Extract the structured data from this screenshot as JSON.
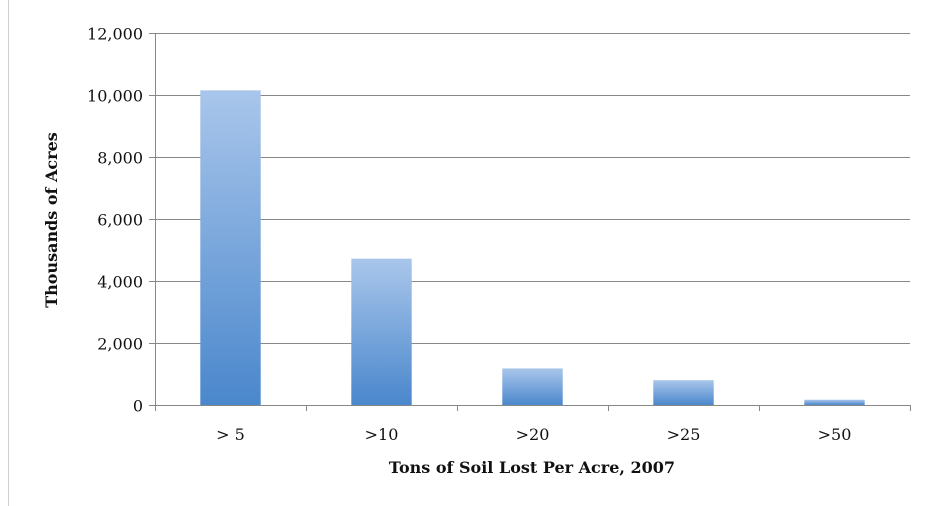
{
  "chart_data": {
    "type": "bar",
    "title": "",
    "xlabel": "Tons of Soil Lost Per Acre, 2007",
    "ylabel": "Thousands of Acres",
    "categories": [
      "> 5",
      ">10",
      ">20",
      ">25",
      ">50"
    ],
    "values": [
      10150,
      4720,
      1180,
      800,
      170
    ],
    "ylim": [
      0,
      12000
    ],
    "yticks": [
      0,
      2000,
      4000,
      6000,
      8000,
      10000,
      12000
    ],
    "ytick_labels": [
      "0",
      "2,000",
      "4,000",
      "6,000",
      "8,000",
      "10,000",
      "12,000"
    ],
    "grid": true,
    "legend": "none",
    "colors": {
      "bar_top": "#A9C6EB",
      "bar_bottom": "#4A87CC",
      "gridline": "#888888",
      "axis": "#888888",
      "text": "#111111"
    }
  }
}
